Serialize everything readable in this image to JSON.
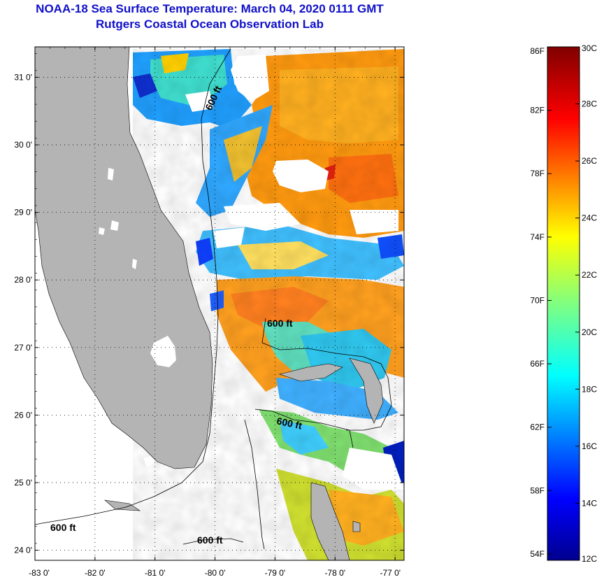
{
  "title": "NOAA-18 Sea Surface Temperature:  March 04, 2020 0111 GMT",
  "subtitle": "Rutgers Coastal Ocean Observation Lab",
  "map": {
    "lat_ticks": [
      "31 0'",
      "30 0'",
      "29 0'",
      "28 0'",
      "27 0'",
      "26 0'",
      "25 0'",
      "24 0'"
    ],
    "lon_ticks": [
      "-83 0'",
      "-82 0'",
      "-81 0'",
      "-80 0'",
      "-79 0'",
      "-78 0'",
      "-77 0'"
    ],
    "lat_values": [
      31,
      30,
      29,
      28,
      27,
      26,
      25,
      24
    ],
    "lon_values": [
      -83,
      -82,
      -81,
      -80,
      -79,
      -78,
      -77
    ],
    "lat_range": [
      23.85,
      31.45
    ],
    "lon_range": [
      -83,
      -76.85
    ],
    "contour_label": "600 ft",
    "land_color": "#b4b4b4",
    "no_data_color": "#ffffff"
  },
  "colorbar": {
    "fahrenheit_labels": [
      "86F",
      "82F",
      "78F",
      "74F",
      "70F",
      "66F",
      "62F",
      "58F",
      "54F"
    ],
    "fahrenheit_values": [
      86,
      82,
      78,
      74,
      70,
      66,
      62,
      58,
      54
    ],
    "celsius_labels": [
      "30C",
      "28C",
      "26C",
      "24C",
      "22C",
      "20C",
      "18C",
      "16C",
      "14C",
      "12C"
    ],
    "celsius_values": [
      30,
      28,
      26,
      24,
      22,
      20,
      18,
      16,
      14,
      12
    ],
    "range_c": [
      12,
      30
    ]
  }
}
